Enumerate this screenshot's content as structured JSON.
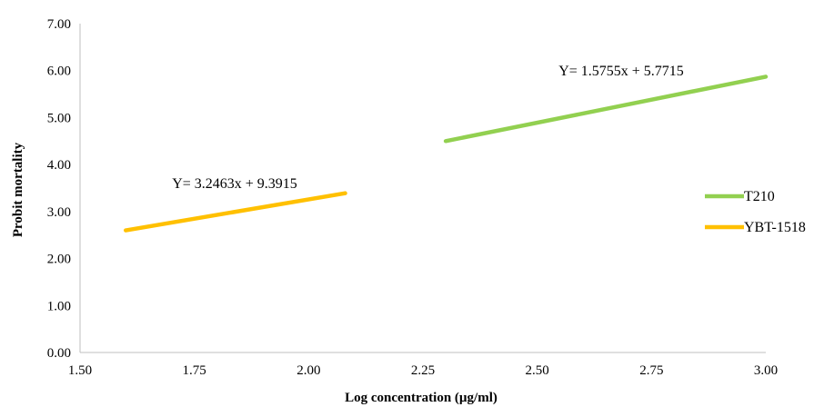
{
  "chart_data": {
    "type": "line",
    "xlabel": "Log concentration (µg/ml)",
    "ylabel": "Probit mortality",
    "xlim": [
      1.5,
      3.0
    ],
    "ylim": [
      0.0,
      7.0
    ],
    "x_ticks": [
      "1.50",
      "1.75",
      "2.00",
      "2.25",
      "2.50",
      "2.75",
      "3.00"
    ],
    "y_ticks": [
      "0.00",
      "1.00",
      "2.00",
      "3.00",
      "4.00",
      "5.00",
      "6.00",
      "7.00"
    ],
    "grid": false,
    "legend_position": "right",
    "series": [
      {
        "name": "T210",
        "color": "#92d050",
        "x": [
          2.3,
          3.0
        ],
        "y": [
          4.5,
          5.87
        ],
        "equation": "Y= 1.5755x + 5.7715"
      },
      {
        "name": "YBT-1518",
        "color": "#ffc000",
        "x": [
          1.6,
          2.08
        ],
        "y": [
          2.6,
          3.39
        ],
        "equation": "Y= 3.2463x + 9.3915"
      }
    ]
  }
}
